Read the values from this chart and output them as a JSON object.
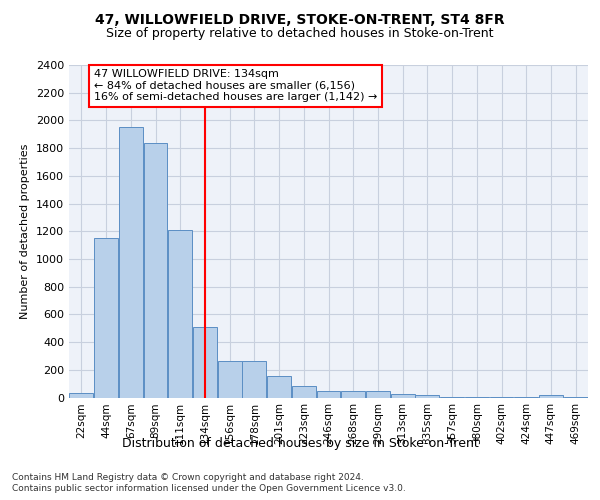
{
  "title": "47, WILLOWFIELD DRIVE, STOKE-ON-TRENT, ST4 8FR",
  "subtitle": "Size of property relative to detached houses in Stoke-on-Trent",
  "xlabel": "Distribution of detached houses by size in Stoke-on-Trent",
  "ylabel": "Number of detached properties",
  "bin_labels": [
    "22sqm",
    "44sqm",
    "67sqm",
    "89sqm",
    "111sqm",
    "134sqm",
    "156sqm",
    "178sqm",
    "201sqm",
    "223sqm",
    "246sqm",
    "268sqm",
    "290sqm",
    "313sqm",
    "335sqm",
    "357sqm",
    "380sqm",
    "402sqm",
    "424sqm",
    "447sqm",
    "469sqm"
  ],
  "bar_values": [
    30,
    1150,
    1950,
    1840,
    1210,
    510,
    265,
    260,
    155,
    80,
    50,
    45,
    45,
    25,
    15,
    5,
    2,
    2,
    2,
    20,
    2
  ],
  "bar_color": "#b8d0ea",
  "bar_edge_color": "#5b8ec4",
  "vline_x_index": 5,
  "vline_color": "red",
  "annotation_line1": "47 WILLOWFIELD DRIVE: 134sqm",
  "annotation_line2": "← 84% of detached houses are smaller (6,156)",
  "annotation_line3": "16% of semi-detached houses are larger (1,142) →",
  "annotation_box_color": "white",
  "annotation_box_edge_color": "red",
  "ylim": [
    0,
    2400
  ],
  "yticks": [
    0,
    200,
    400,
    600,
    800,
    1000,
    1200,
    1400,
    1600,
    1800,
    2000,
    2200,
    2400
  ],
  "footer1": "Contains HM Land Registry data © Crown copyright and database right 2024.",
  "footer2": "Contains public sector information licensed under the Open Government Licence v3.0.",
  "bg_color": "#eef2f9",
  "grid_color": "#c8d0de",
  "title_fontsize": 10,
  "subtitle_fontsize": 9,
  "ylabel_fontsize": 8,
  "xlabel_fontsize": 9,
  "tick_fontsize": 8,
  "xtick_fontsize": 7.5,
  "footer_fontsize": 6.5
}
